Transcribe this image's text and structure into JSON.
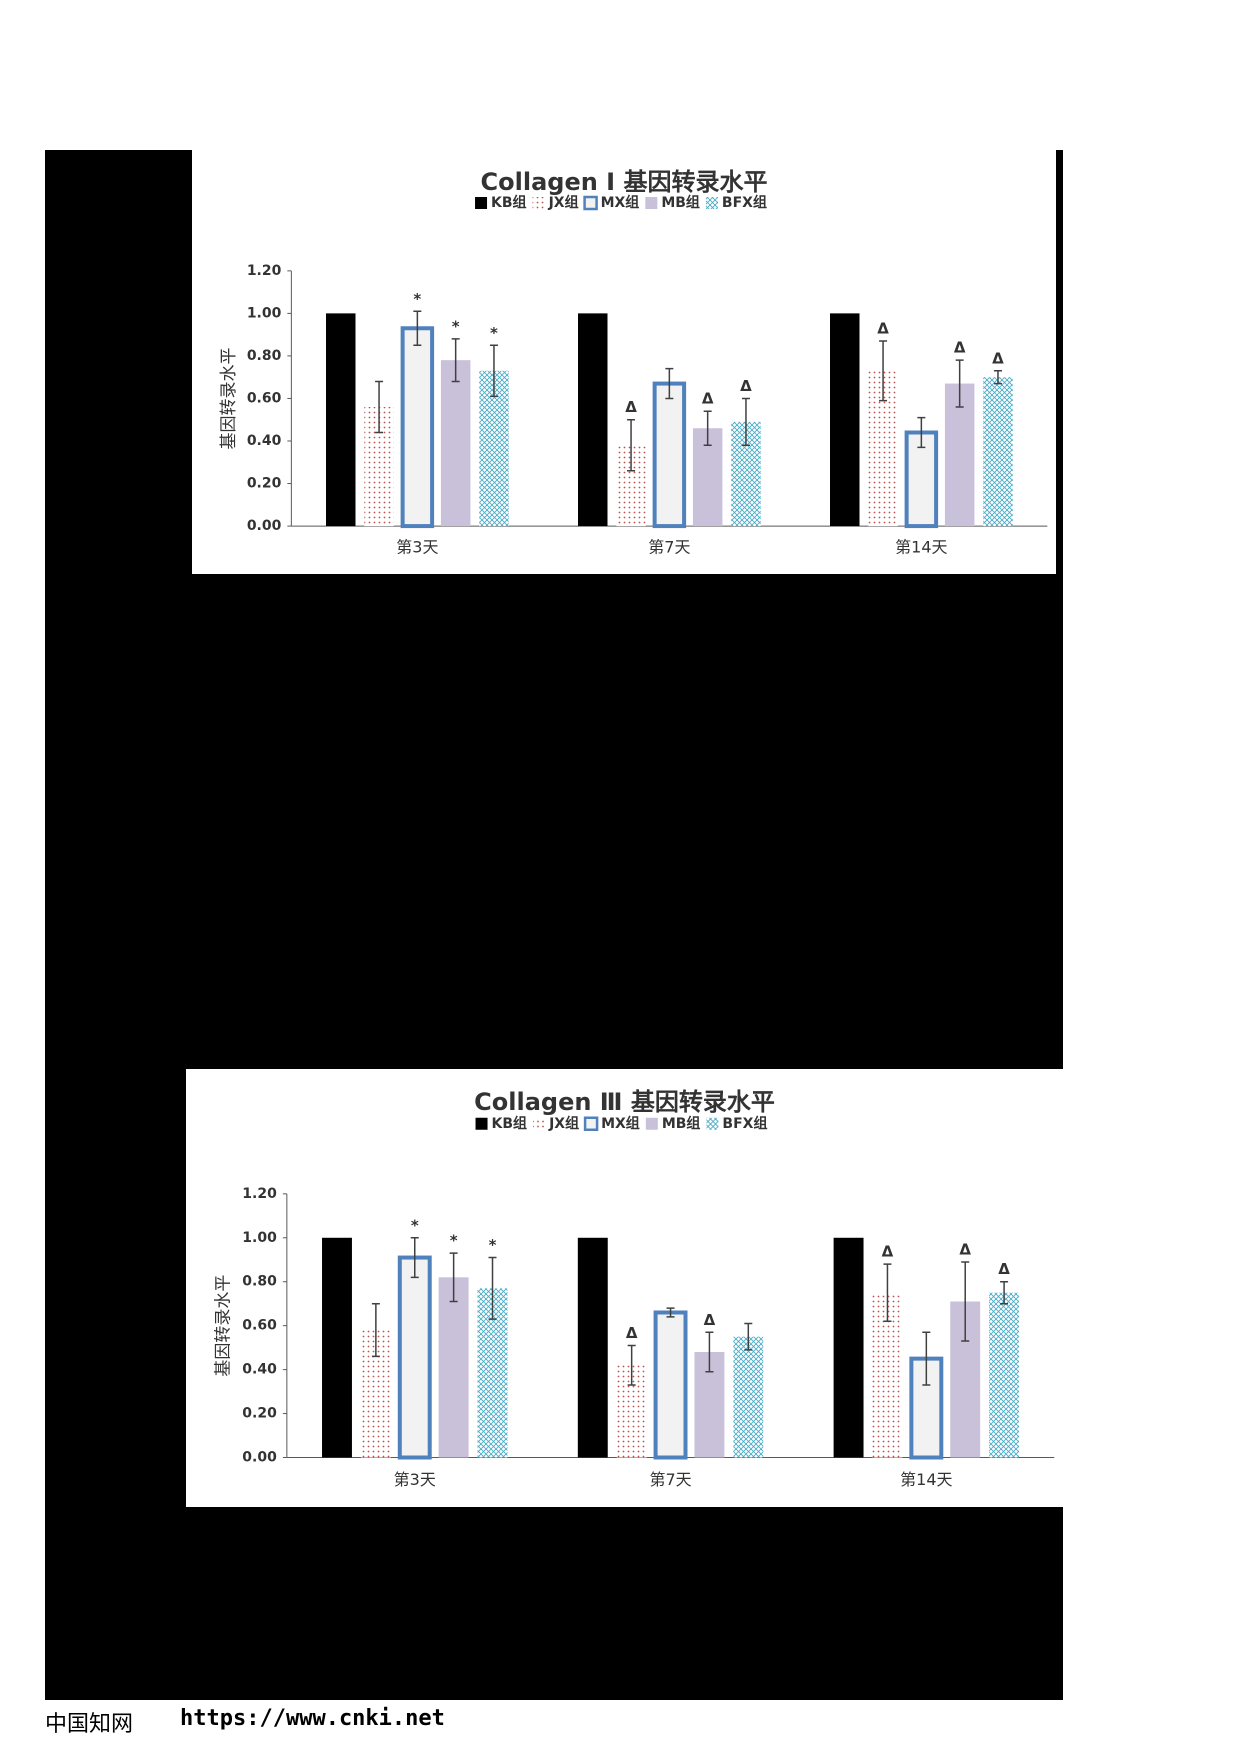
{
  "chart_data": [
    {
      "type": "bar",
      "title": "Collagen Ⅰ 基因转录水平",
      "ylabel": "基因转录水平",
      "categories": [
        "第3天",
        "第7天",
        "第14天"
      ],
      "ylim": [
        0,
        1.2
      ],
      "yticks": [
        {
          "value": 0,
          "label": "0.00"
        },
        {
          "value": 0.2,
          "label": "0.20"
        },
        {
          "value": 0.4,
          "label": "0.40"
        },
        {
          "value": 0.6,
          "label": "0.60"
        },
        {
          "value": 0.8,
          "label": "0.80"
        },
        {
          "value": 1,
          "label": "1.00"
        },
        {
          "value": 1.2,
          "label": "1.20"
        }
      ],
      "series": [
        {
          "name": "KB组",
          "color": "#000000",
          "fill_style": "solid",
          "values": [
            1,
            1,
            1
          ]
        },
        {
          "name": "JX组",
          "color": "#c0504d",
          "fill_style": "dots",
          "values": [
            0.56,
            0.38,
            0.73
          ],
          "errors": [
            0.12,
            0.12,
            0.14
          ],
          "annotations": [
            null,
            "Δ",
            "Δ"
          ]
        },
        {
          "name": "MX组",
          "color": "#4f81bd",
          "fill_style": "outline",
          "values": [
            0.93,
            0.67,
            0.44
          ],
          "errors": [
            0.08,
            0.07,
            0.07
          ],
          "annotations": [
            "*",
            null,
            null
          ]
        },
        {
          "name": "MB组",
          "color": "#c9c0d9",
          "fill_style": "solid",
          "values": [
            0.78,
            0.46,
            0.67
          ],
          "errors": [
            0.1,
            0.08,
            0.11
          ],
          "annotations": [
            "*",
            "Δ",
            "Δ"
          ]
        },
        {
          "name": "BFX组",
          "color": "#4bacc6",
          "fill_style": "crosshatch",
          "values": [
            0.73,
            0.49,
            0.7
          ],
          "errors": [
            0.12,
            0.11,
            0.03
          ],
          "annotations": [
            "*",
            "Δ",
            "Δ"
          ]
        }
      ]
    },
    {
      "type": "bar",
      "title": "Collagen Ⅲ 基因转录水平",
      "ylabel": "基因转录水平",
      "categories": [
        "第3天",
        "第7天",
        "第14天"
      ],
      "ylim": [
        0,
        1.2
      ],
      "yticks": [
        {
          "value": 0,
          "label": "0.00"
        },
        {
          "value": 0.2,
          "label": "0.20"
        },
        {
          "value": 0.4,
          "label": "0.40"
        },
        {
          "value": 0.6,
          "label": "0.60"
        },
        {
          "value": 0.8,
          "label": "0.80"
        },
        {
          "value": 1,
          "label": "1.00"
        },
        {
          "value": 1.2,
          "label": "1.20"
        }
      ],
      "series": [
        {
          "name": "KB组",
          "color": "#000000",
          "fill_style": "solid",
          "values": [
            1,
            1,
            1
          ]
        },
        {
          "name": "JX组",
          "color": "#c0504d",
          "fill_style": "dots",
          "values": [
            0.58,
            0.42,
            0.75
          ],
          "errors": [
            0.12,
            0.09,
            0.13
          ],
          "annotations": [
            null,
            "Δ",
            "Δ"
          ]
        },
        {
          "name": "MX组",
          "color": "#4f81bd",
          "fill_style": "outline",
          "values": [
            0.91,
            0.66,
            0.45
          ],
          "errors": [
            0.09,
            0.02,
            0.12
          ],
          "annotations": [
            "*",
            null,
            null
          ]
        },
        {
          "name": "MB组",
          "color": "#c9c0d9",
          "fill_style": "solid",
          "values": [
            0.82,
            0.48,
            0.71
          ],
          "errors": [
            0.11,
            0.09,
            0.18
          ],
          "annotations": [
            "*",
            "Δ",
            "Δ"
          ]
        },
        {
          "name": "BFX组",
          "color": "#4bacc6",
          "fill_style": "crosshatch",
          "values": [
            0.77,
            0.55,
            0.75
          ],
          "errors": [
            0.14,
            0.06,
            0.05
          ],
          "annotations": [
            "*",
            null,
            "Δ"
          ]
        }
      ]
    }
  ],
  "footer": {
    "site": "中国知网",
    "url": "https://www.cnki.net"
  }
}
